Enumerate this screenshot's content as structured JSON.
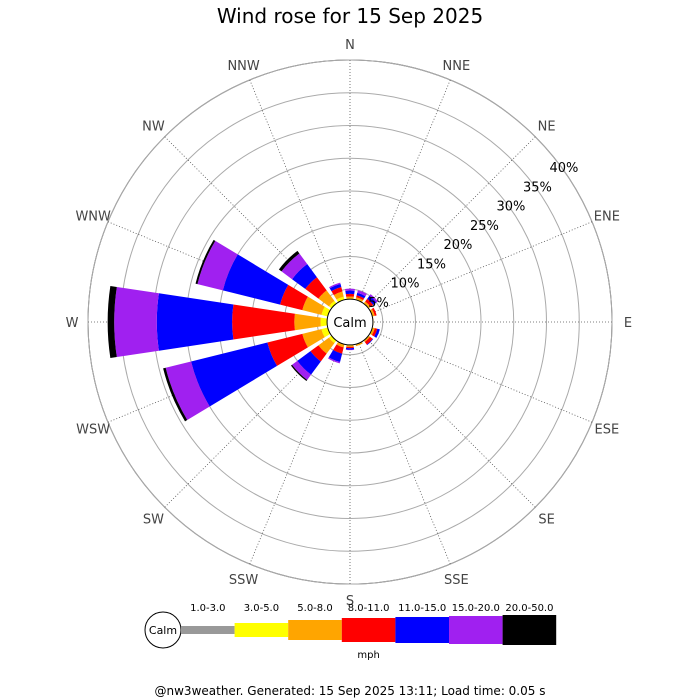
{
  "chart_data": {
    "type": "wind-rose",
    "title": "Wind rose for 15 Sep 2025",
    "directions": [
      "N",
      "NNE",
      "NE",
      "ENE",
      "E",
      "ESE",
      "SE",
      "SSE",
      "S",
      "SSW",
      "SW",
      "WSW",
      "W",
      "WNW",
      "NW",
      "NNW"
    ],
    "ring_labels": [
      "5%",
      "10%",
      "15%",
      "20%",
      "25%",
      "30%",
      "35%",
      "40%"
    ],
    "ring_values": [
      5,
      10,
      15,
      20,
      25,
      30,
      35,
      40
    ],
    "rmax": 40,
    "calm_label": "Calm",
    "unit": "mph",
    "legend_position": "bottom",
    "bins": [
      {
        "label": "1.0-3.0",
        "color": "#999999"
      },
      {
        "label": "3.0-5.0",
        "color": "#ffff00"
      },
      {
        "label": "5.0-8.0",
        "color": "#ffa500"
      },
      {
        "label": "8.0-11.0",
        "color": "#ff0000"
      },
      {
        "label": "11.0-15.0",
        "color": "#0000ff"
      },
      {
        "label": "15.0-20.0",
        "color": "#a020f0"
      },
      {
        "label": "20.0-50.0",
        "color": "#000000"
      }
    ],
    "calm_percent": 3.5,
    "cumulative_percent": {
      "N": [
        3.5,
        3.6,
        3.9,
        4.3,
        4.8,
        5.1,
        5.1
      ],
      "NNE": [
        3.5,
        3.6,
        3.9,
        4.2,
        4.6,
        5.0,
        5.0
      ],
      "NE": [
        3.5,
        3.6,
        3.9,
        4.4,
        5.0,
        5.3,
        5.3
      ],
      "ENE": [
        3.5,
        3.6,
        3.9,
        4.2,
        4.2,
        4.2,
        4.2
      ],
      "E": [
        3.5,
        3.5,
        3.6,
        3.6,
        3.6,
        3.6,
        3.6
      ],
      "ESE": [
        3.5,
        3.6,
        3.9,
        4.3,
        4.7,
        4.7,
        4.7
      ],
      "SE": [
        3.5,
        3.6,
        3.8,
        4.3,
        4.4,
        4.4,
        4.4
      ],
      "SSE": [
        3.5,
        3.6,
        3.8,
        3.8,
        3.8,
        3.8,
        3.8
      ],
      "S": [
        3.5,
        3.6,
        3.8,
        4.0,
        4.2,
        4.3,
        4.3
      ],
      "SSW": [
        3.5,
        3.6,
        4.0,
        5.0,
        6.3,
        6.5,
        6.5
      ],
      "SW": [
        3.5,
        4.0,
        6.0,
        7.5,
        10.0,
        11.0,
        11.2
      ],
      "WSW": [
        3.5,
        4.5,
        7.5,
        13.0,
        25.0,
        29.0,
        29.4
      ],
      "W": [
        3.5,
        4.5,
        8.5,
        18.0,
        29.5,
        36.0,
        37.0
      ],
      "WNW": [
        3.5,
        4.5,
        7.5,
        11.0,
        20.0,
        24.0,
        24.3
      ],
      "NW": [
        3.5,
        4.0,
        6.0,
        8.5,
        11.0,
        13.0,
        13.5
      ],
      "NNW": [
        3.5,
        4.0,
        4.8,
        5.5,
        6.0,
        6.2,
        6.2
      ]
    }
  },
  "footer": "@nw3weather. Generated: 15 Sep 2025 13:11; Load time: 0.05 s"
}
